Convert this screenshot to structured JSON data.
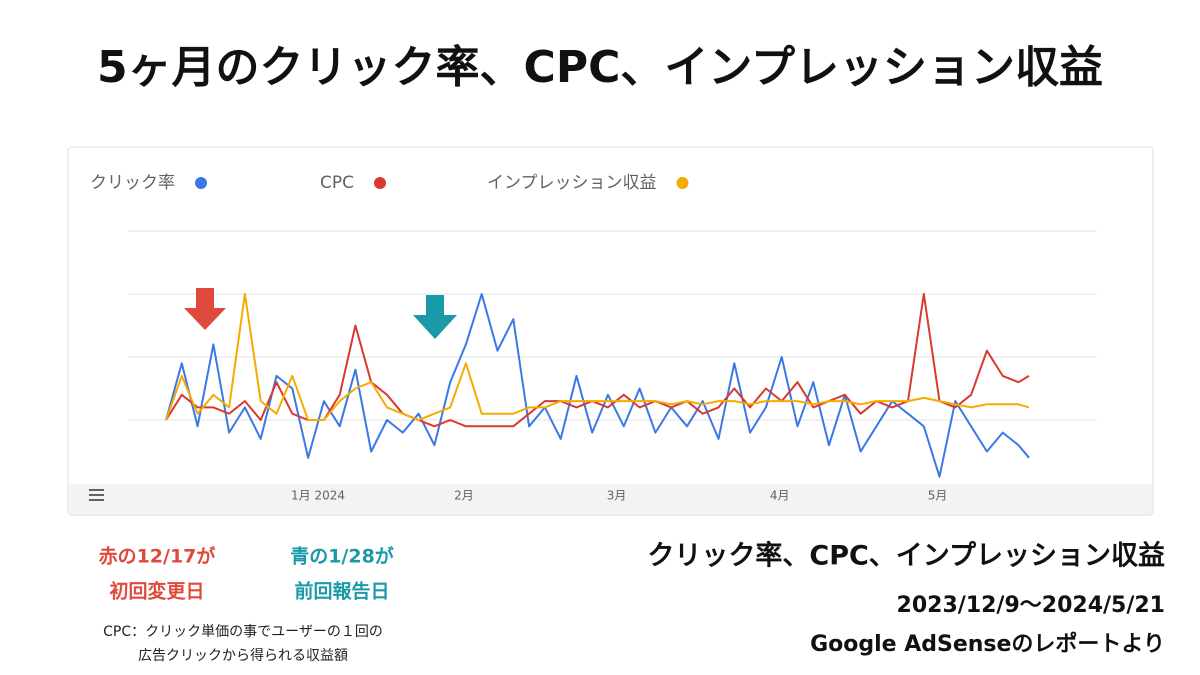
{
  "header": {
    "title": "5ヶ月のクリック率、CPC、インプレッション収益"
  },
  "chart_data": {
    "type": "line",
    "x": [
      0,
      3,
      6,
      9,
      12,
      15,
      18,
      21,
      24,
      27,
      30,
      33,
      36,
      39,
      42,
      45,
      48,
      51,
      54,
      57,
      60,
      63,
      66,
      69,
      72,
      75,
      78,
      81,
      84,
      87,
      90,
      93,
      96,
      99,
      102,
      105,
      108,
      111,
      114,
      117,
      120,
      123,
      126,
      129,
      132,
      135,
      138,
      141,
      144,
      147,
      150,
      153,
      156,
      159,
      162,
      164
    ],
    "xlim": [
      0,
      164
    ],
    "xticks": [
      {
        "value": 23,
        "label": "1月 2024"
      },
      {
        "value": 54,
        "label": "2月"
      },
      {
        "value": 83,
        "label": "3月"
      },
      {
        "value": 114,
        "label": "4月"
      },
      {
        "value": 144,
        "label": "5月"
      }
    ],
    "ylim": [
      0,
      4
    ],
    "gridlines": [
      1,
      2,
      3,
      4
    ],
    "series": [
      {
        "name": "クリック率",
        "color": "#3a78e6",
        "values": [
          1.0,
          1.9,
          0.9,
          2.2,
          0.8,
          1.2,
          0.7,
          1.7,
          1.5,
          0.4,
          1.3,
          0.9,
          1.8,
          0.5,
          1.0,
          0.8,
          1.1,
          0.6,
          1.6,
          2.2,
          3.0,
          2.1,
          2.6,
          0.9,
          1.2,
          0.7,
          1.7,
          0.8,
          1.4,
          0.9,
          1.5,
          0.8,
          1.2,
          0.9,
          1.3,
          0.7,
          1.9,
          0.8,
          1.2,
          2.0,
          0.9,
          1.6,
          0.6,
          1.4,
          0.5,
          0.9,
          1.3,
          1.1,
          0.9,
          0.1,
          1.3,
          0.9,
          0.5,
          0.8,
          0.6,
          0.4
        ]
      },
      {
        "name": "CPC",
        "color": "#d93a2f",
        "values": [
          1.0,
          1.4,
          1.2,
          1.2,
          1.1,
          1.3,
          1.0,
          1.6,
          1.1,
          1.0,
          1.0,
          1.4,
          2.5,
          1.6,
          1.4,
          1.1,
          1.0,
          0.9,
          1.0,
          0.9,
          0.9,
          0.9,
          0.9,
          1.1,
          1.3,
          1.3,
          1.2,
          1.3,
          1.2,
          1.4,
          1.2,
          1.3,
          1.2,
          1.3,
          1.1,
          1.2,
          1.5,
          1.2,
          1.5,
          1.3,
          1.6,
          1.2,
          1.3,
          1.4,
          1.1,
          1.3,
          1.2,
          1.3,
          3.0,
          1.3,
          1.2,
          1.4,
          2.1,
          1.7,
          1.6,
          1.7
        ]
      },
      {
        "name": "インプレッション収益",
        "color": "#f5ab00",
        "values": [
          1.0,
          1.7,
          1.1,
          1.4,
          1.2,
          3.0,
          1.3,
          1.1,
          1.7,
          1.0,
          1.0,
          1.3,
          1.5,
          1.6,
          1.2,
          1.1,
          1.0,
          1.1,
          1.2,
          1.9,
          1.1,
          1.1,
          1.1,
          1.2,
          1.2,
          1.3,
          1.3,
          1.3,
          1.3,
          1.3,
          1.3,
          1.3,
          1.25,
          1.3,
          1.25,
          1.3,
          1.3,
          1.25,
          1.3,
          1.3,
          1.3,
          1.25,
          1.3,
          1.3,
          1.25,
          1.3,
          1.3,
          1.3,
          1.35,
          1.3,
          1.25,
          1.2,
          1.25,
          1.25,
          1.25,
          1.2
        ]
      }
    ]
  },
  "annotations": {
    "red_note": [
      "赤の12/17が",
      "初回変更日"
    ],
    "teal_note": [
      "青の1/28が",
      "前回報告日"
    ],
    "cpc_note": [
      "CPC：クリック単価の事でユーザーの１回の",
      "広告クリックから得られる収益額"
    ],
    "summary": [
      "クリック率、CPC、インプレッション収益",
      "2023/12/9〜2024/5/21",
      "Google AdSenseのレポートより"
    ]
  }
}
